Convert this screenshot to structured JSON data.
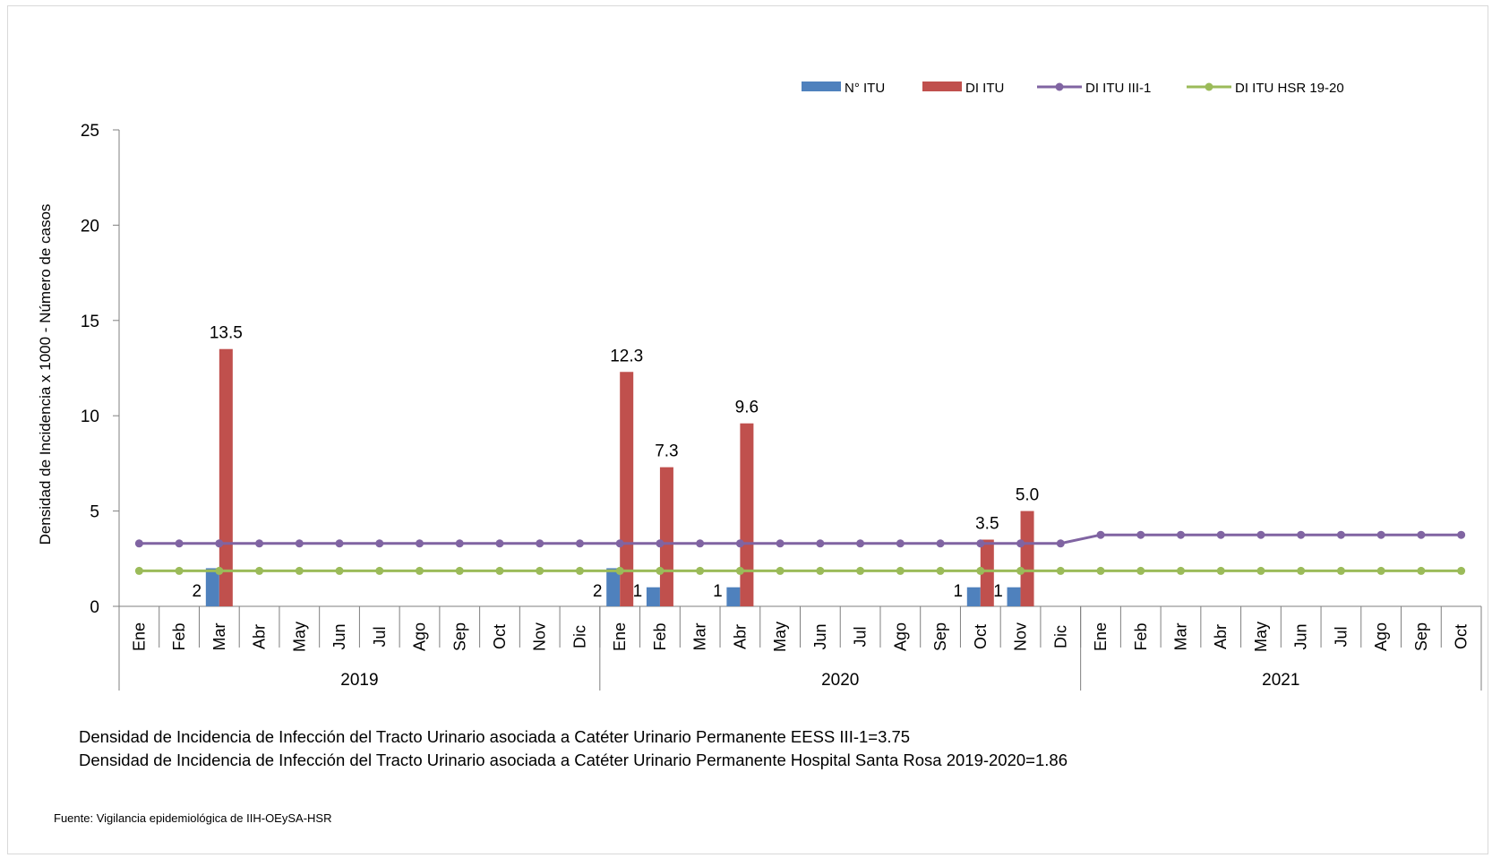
{
  "chart_data": {
    "type": "bar",
    "ylabel": "Densidad de Incidencia x 1000 - Número de casos",
    "ylim": [
      0,
      25
    ],
    "yticks": [
      0,
      5,
      10,
      15,
      20,
      25
    ],
    "categories": [
      "Ene",
      "Feb",
      "Mar",
      "Abr",
      "May",
      "Jun",
      "Jul",
      "Ago",
      "Sep",
      "Oct",
      "Nov",
      "Dic",
      "Ene",
      "Feb",
      "Mar",
      "Abr",
      "May",
      "Jun",
      "Jul",
      "Ago",
      "Sep",
      "Oct",
      "Nov",
      "Dic",
      "Ene",
      "Feb",
      "Mar",
      "Abr",
      "May",
      "Jun",
      "Jul",
      "Ago",
      "Sep",
      "Oct"
    ],
    "groups": [
      {
        "label": "2019",
        "count": 12
      },
      {
        "label": "2020",
        "count": 12
      },
      {
        "label": "2021",
        "count": 10
      }
    ],
    "legend_position": "top-right",
    "grid": false,
    "series": [
      {
        "name": "N° ITU",
        "kind": "bar",
        "color": "#4F81BD",
        "values": [
          0,
          0,
          2,
          0,
          0,
          0,
          0,
          0,
          0,
          0,
          0,
          0,
          2,
          1,
          0,
          1,
          0,
          0,
          0,
          0,
          0,
          1,
          1,
          0,
          null,
          null,
          null,
          null,
          null,
          null,
          null,
          null,
          null,
          null
        ],
        "labels": [
          "",
          "",
          "2",
          "",
          "",
          "",
          "",
          "",
          "",
          "",
          "",
          "",
          "2",
          "1",
          "",
          "1",
          "",
          "",
          "",
          "",
          "",
          "1",
          "1",
          "",
          "",
          "",
          "",
          "",
          "",
          "",
          "",
          "",
          "",
          ""
        ]
      },
      {
        "name": "DI ITU",
        "kind": "bar",
        "color": "#C0504D",
        "values": [
          0,
          0,
          13.5,
          0,
          0,
          0,
          0,
          0,
          0,
          0,
          0,
          0,
          12.3,
          7.3,
          0,
          9.6,
          0,
          0,
          0,
          0,
          0,
          3.5,
          5.0,
          0,
          null,
          null,
          null,
          null,
          null,
          null,
          null,
          null,
          null,
          null
        ],
        "labels": [
          "",
          "",
          "13.5",
          "",
          "",
          "",
          "",
          "",
          "",
          "",
          "",
          "",
          "12.3",
          "7.3",
          "",
          "9.6",
          "",
          "",
          "",
          "",
          "",
          "3.5",
          "5.0",
          "",
          "",
          "",
          "",
          "",
          "",
          "",
          "",
          "",
          "",
          ""
        ]
      },
      {
        "name": "DI ITU III-1",
        "kind": "line",
        "color": "#8064A2",
        "values": [
          3.3,
          3.3,
          3.3,
          3.3,
          3.3,
          3.3,
          3.3,
          3.3,
          3.3,
          3.3,
          3.3,
          3.3,
          3.3,
          3.3,
          3.3,
          3.3,
          3.3,
          3.3,
          3.3,
          3.3,
          3.3,
          3.3,
          3.3,
          3.3,
          3.75,
          3.75,
          3.75,
          3.75,
          3.75,
          3.75,
          3.75,
          3.75,
          3.75,
          3.75
        ]
      },
      {
        "name": "DI ITU HSR  19-20",
        "kind": "line",
        "color": "#9BBB59",
        "values": [
          1.86,
          1.86,
          1.86,
          1.86,
          1.86,
          1.86,
          1.86,
          1.86,
          1.86,
          1.86,
          1.86,
          1.86,
          1.86,
          1.86,
          1.86,
          1.86,
          1.86,
          1.86,
          1.86,
          1.86,
          1.86,
          1.86,
          1.86,
          1.86,
          1.86,
          1.86,
          1.86,
          1.86,
          1.86,
          1.86,
          1.86,
          1.86,
          1.86,
          1.86
        ]
      }
    ]
  },
  "notes": {
    "line1": "Densidad de Incidencia de Infección del Tracto Urinario asociada a Catéter Urinario Permanente EESS III-1=3.75",
    "line2": "Densidad de Incidencia de Infección del Tracto Urinario asociada a Catéter Urinario Permanente Hospital Santa Rosa 2019-2020=1.86"
  },
  "source": "Fuente: Vigilancia epidemiológica de IIH-OEySA-HSR"
}
